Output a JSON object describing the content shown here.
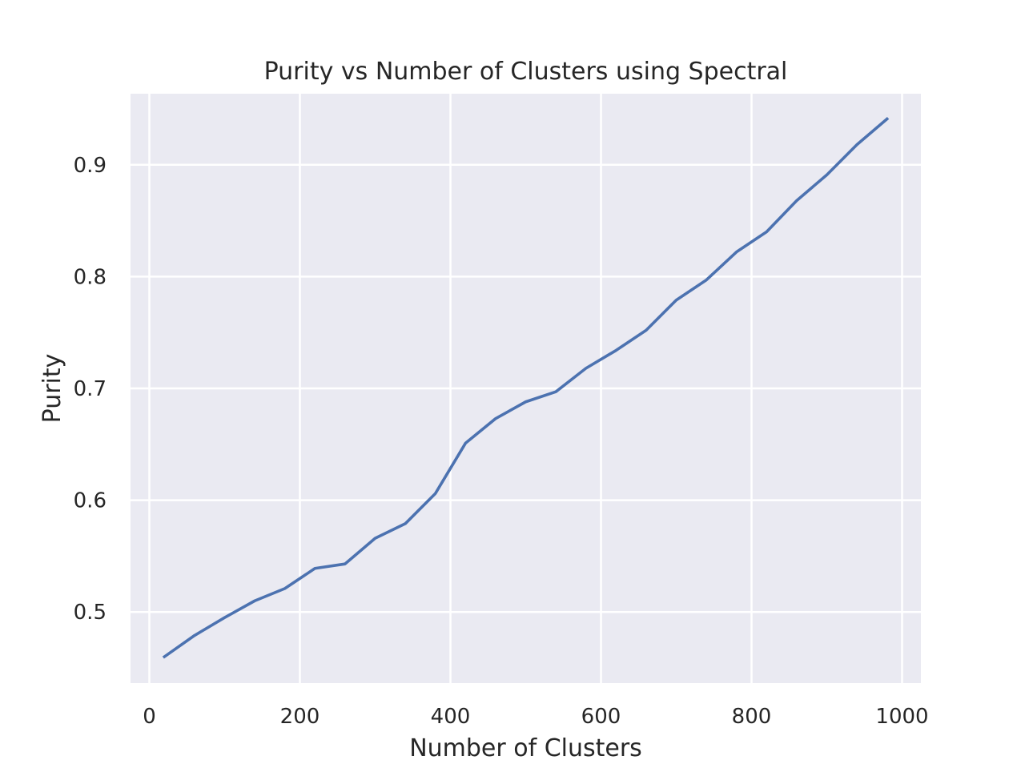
{
  "chart_data": {
    "type": "line",
    "title": "Purity vs Number of Clusters using Spectral",
    "xlabel": "Number of Clusters",
    "ylabel": "Purity",
    "xlim": [
      -25,
      1025
    ],
    "ylim": [
      0.4364,
      0.9636
    ],
    "x_ticks": [
      0,
      200,
      400,
      600,
      800,
      1000
    ],
    "x_tick_labels": [
      "0",
      "200",
      "400",
      "600",
      "800",
      "1000"
    ],
    "y_ticks": [
      0.5,
      0.6,
      0.7,
      0.8,
      0.9
    ],
    "y_tick_labels": [
      "0.5",
      "0.6",
      "0.7",
      "0.8",
      "0.9"
    ],
    "grid": true,
    "style": "seaborn-darkgrid",
    "background_color": "#eaeaf2",
    "grid_color": "#ffffff",
    "series": [
      {
        "color": "#4c72b0",
        "x": [
          20,
          60,
          100,
          140,
          180,
          220,
          260,
          300,
          340,
          380,
          420,
          460,
          500,
          540,
          580,
          620,
          660,
          700,
          740,
          780,
          820,
          860,
          900,
          940,
          980
        ],
        "y": [
          0.46,
          0.479,
          0.495,
          0.51,
          0.521,
          0.539,
          0.543,
          0.566,
          0.579,
          0.606,
          0.651,
          0.673,
          0.688,
          0.697,
          0.718,
          0.734,
          0.752,
          0.779,
          0.797,
          0.822,
          0.84,
          0.868,
          0.891,
          0.918,
          0.941
        ]
      }
    ]
  }
}
